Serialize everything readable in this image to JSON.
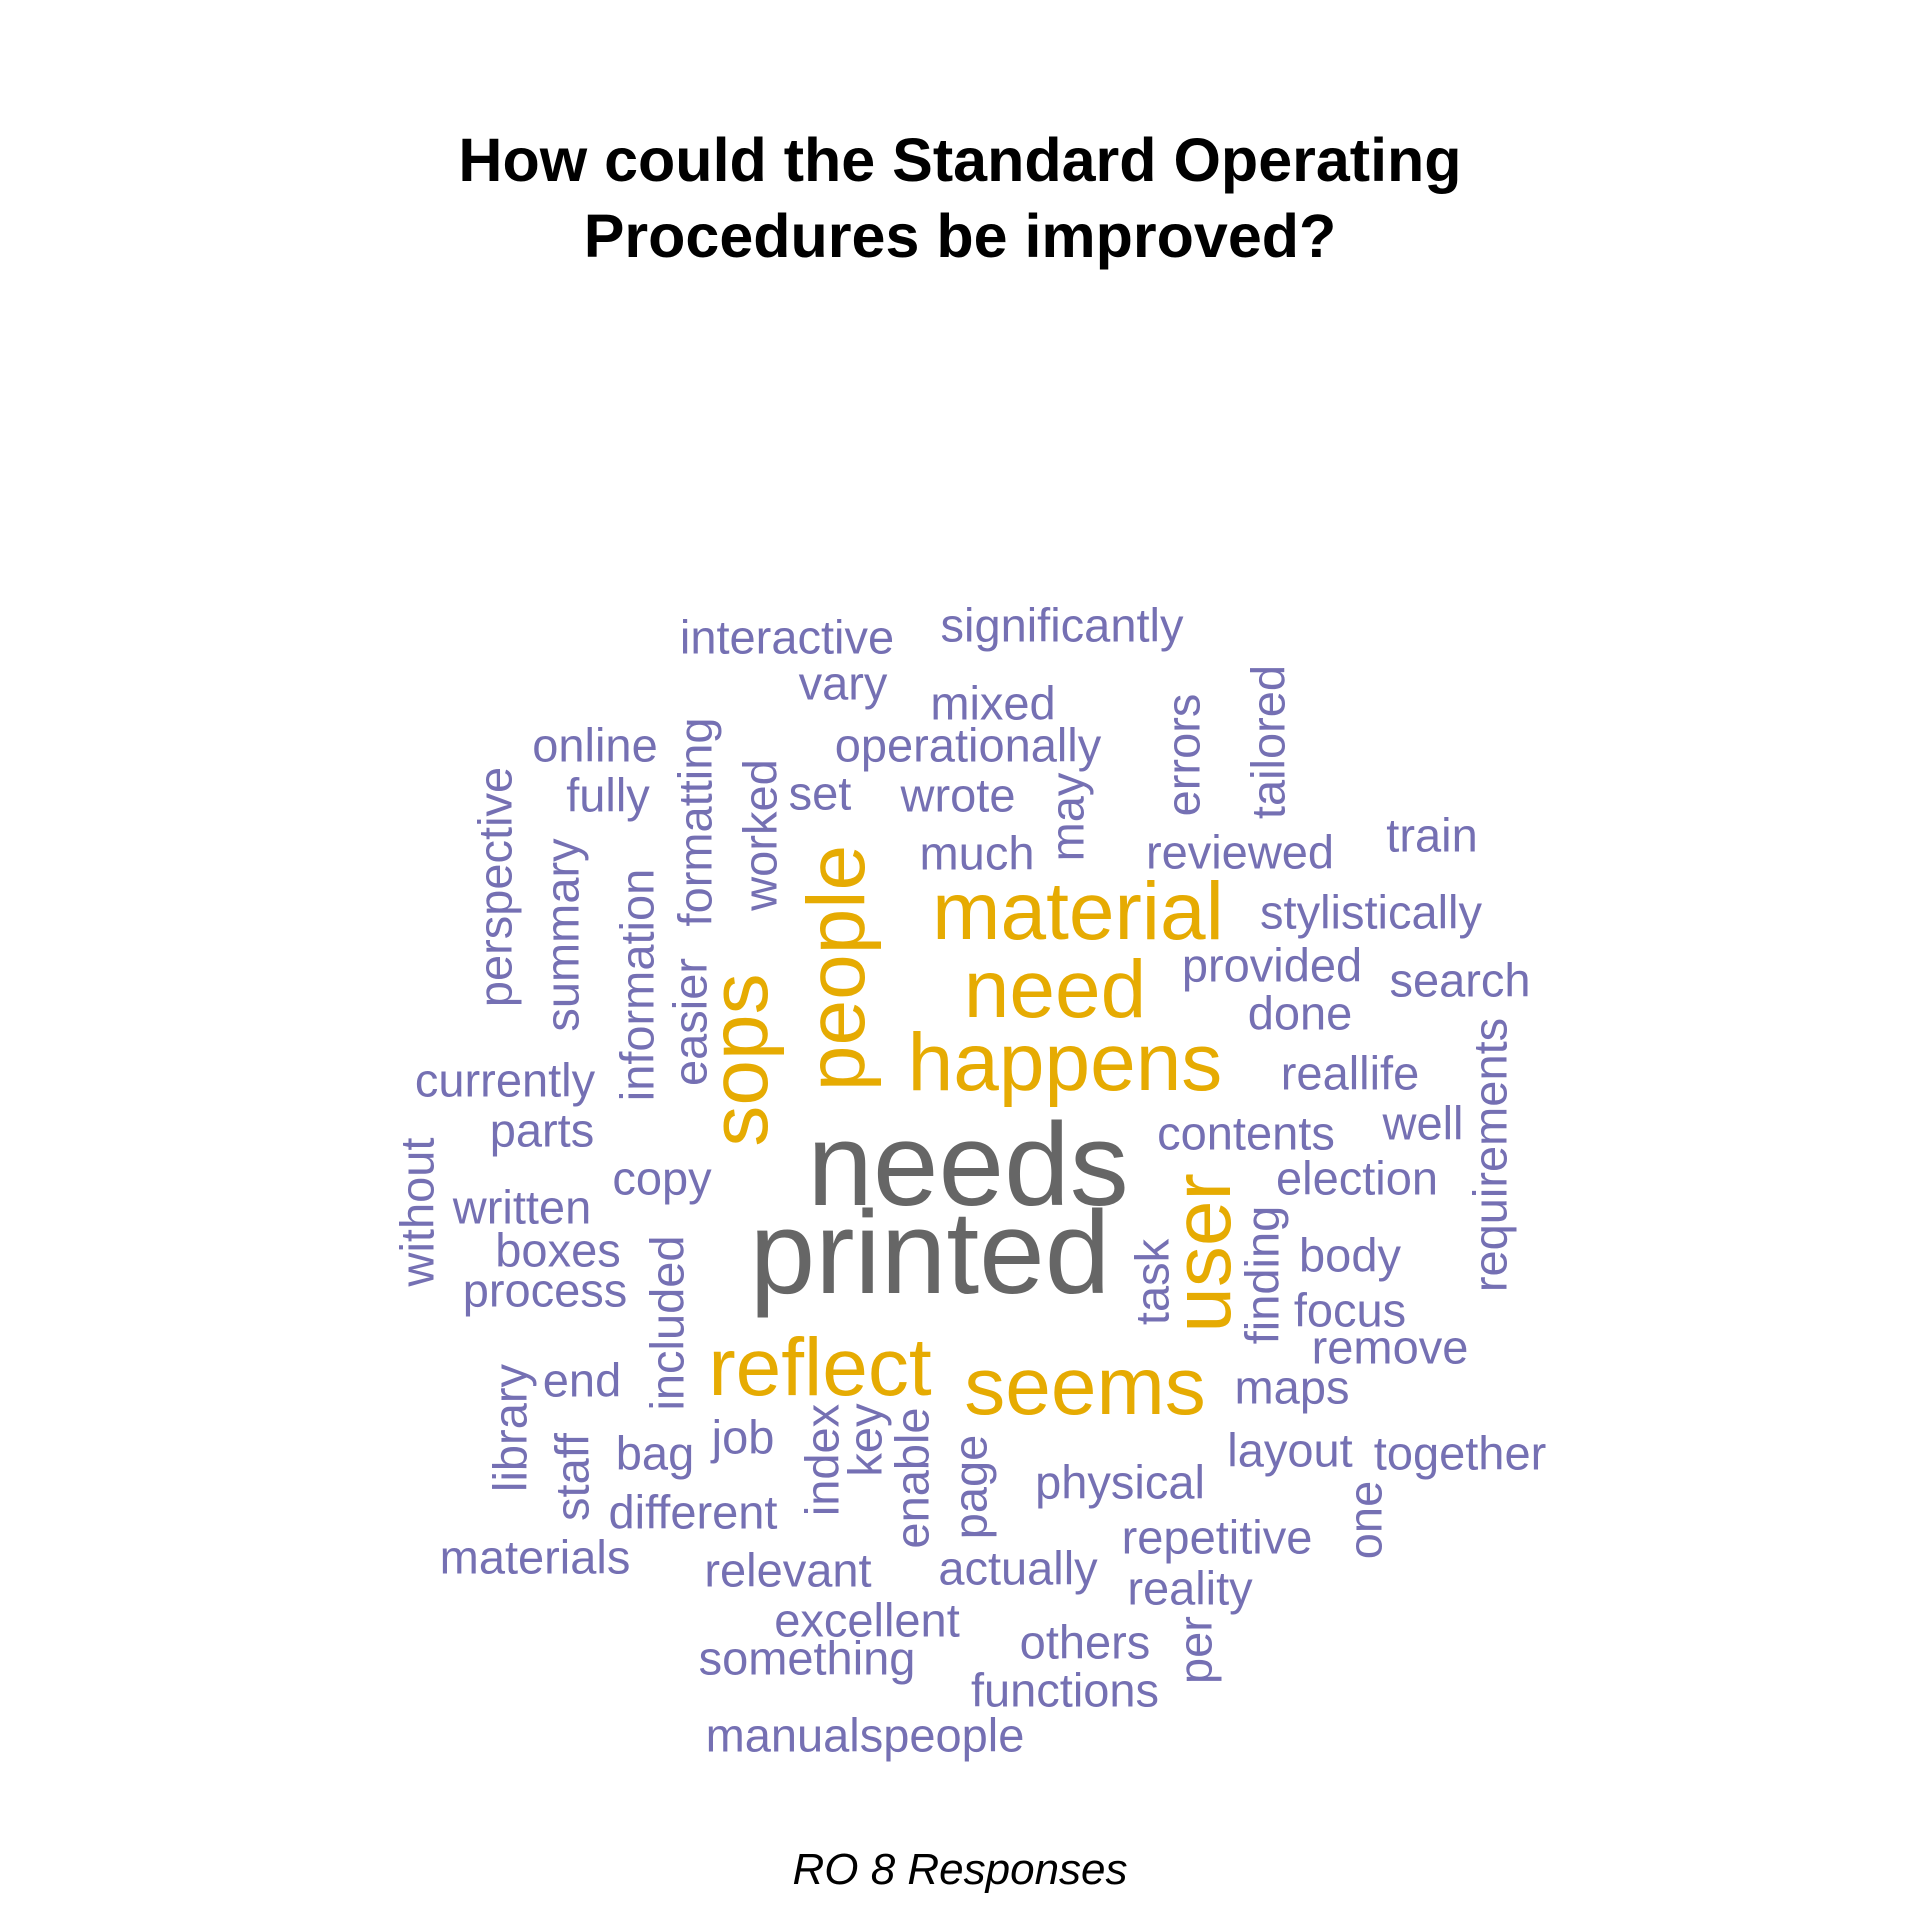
{
  "title_lines": [
    "How could the Standard Operating",
    "Procedures be improved?"
  ],
  "caption": "RO 8 Responses",
  "colors": {
    "low": "#7570b3",
    "mid": "#e6ab02",
    "high": "#666666"
  },
  "words": [
    {
      "text": "needs",
      "tier": "high"
    },
    {
      "text": "printed",
      "tier": "high"
    },
    {
      "text": "material",
      "tier": "mid"
    },
    {
      "text": "need",
      "tier": "mid"
    },
    {
      "text": "happens",
      "tier": "mid"
    },
    {
      "text": "people",
      "tier": "mid"
    },
    {
      "text": "sops",
      "tier": "mid"
    },
    {
      "text": "user",
      "tier": "mid"
    },
    {
      "text": "reflect",
      "tier": "mid"
    },
    {
      "text": "seems",
      "tier": "mid"
    },
    {
      "text": "interactive",
      "tier": "low"
    },
    {
      "text": "significantly",
      "tier": "low"
    },
    {
      "text": "vary",
      "tier": "low"
    },
    {
      "text": "mixed",
      "tier": "low"
    },
    {
      "text": "online",
      "tier": "low"
    },
    {
      "text": "operationally",
      "tier": "low"
    },
    {
      "text": "fully",
      "tier": "low"
    },
    {
      "text": "set",
      "tier": "low"
    },
    {
      "text": "wrote",
      "tier": "low"
    },
    {
      "text": "train",
      "tier": "low"
    },
    {
      "text": "much",
      "tier": "low"
    },
    {
      "text": "reviewed",
      "tier": "low"
    },
    {
      "text": "stylistically",
      "tier": "low"
    },
    {
      "text": "provided",
      "tier": "low"
    },
    {
      "text": "search",
      "tier": "low"
    },
    {
      "text": "done",
      "tier": "low"
    },
    {
      "text": "currently",
      "tier": "low"
    },
    {
      "text": "reallife",
      "tier": "low"
    },
    {
      "text": "parts",
      "tier": "low"
    },
    {
      "text": "contents",
      "tier": "low"
    },
    {
      "text": "well",
      "tier": "low"
    },
    {
      "text": "copy",
      "tier": "low"
    },
    {
      "text": "election",
      "tier": "low"
    },
    {
      "text": "written",
      "tier": "low"
    },
    {
      "text": "boxes",
      "tier": "low"
    },
    {
      "text": "body",
      "tier": "low"
    },
    {
      "text": "process",
      "tier": "low"
    },
    {
      "text": "focus",
      "tier": "low"
    },
    {
      "text": "remove",
      "tier": "low"
    },
    {
      "text": "end",
      "tier": "low"
    },
    {
      "text": "maps",
      "tier": "low"
    },
    {
      "text": "job",
      "tier": "low"
    },
    {
      "text": "bag",
      "tier": "low"
    },
    {
      "text": "layout",
      "tier": "low"
    },
    {
      "text": "together",
      "tier": "low"
    },
    {
      "text": "physical",
      "tier": "low"
    },
    {
      "text": "different",
      "tier": "low"
    },
    {
      "text": "repetitive",
      "tier": "low"
    },
    {
      "text": "materials",
      "tier": "low"
    },
    {
      "text": "relevant",
      "tier": "low"
    },
    {
      "text": "actually",
      "tier": "low"
    },
    {
      "text": "reality",
      "tier": "low"
    },
    {
      "text": "excellent",
      "tier": "low"
    },
    {
      "text": "others",
      "tier": "low"
    },
    {
      "text": "something",
      "tier": "low"
    },
    {
      "text": "functions",
      "tier": "low"
    },
    {
      "text": "manualspeople",
      "tier": "low"
    },
    {
      "text": "perspective",
      "tier": "low"
    },
    {
      "text": "summary",
      "tier": "low"
    },
    {
      "text": "information",
      "tier": "low"
    },
    {
      "text": "formatting",
      "tier": "low"
    },
    {
      "text": "easier",
      "tier": "low"
    },
    {
      "text": "worked",
      "tier": "low"
    },
    {
      "text": "may",
      "tier": "low"
    },
    {
      "text": "errors",
      "tier": "low"
    },
    {
      "text": "tailored",
      "tier": "low"
    },
    {
      "text": "requirements",
      "tier": "low"
    },
    {
      "text": "without",
      "tier": "low"
    },
    {
      "text": "task",
      "tier": "low"
    },
    {
      "text": "finding",
      "tier": "low"
    },
    {
      "text": "included",
      "tier": "low"
    },
    {
      "text": "library",
      "tier": "low"
    },
    {
      "text": "staff",
      "tier": "low"
    },
    {
      "text": "index",
      "tier": "low"
    },
    {
      "text": "key",
      "tier": "low"
    },
    {
      "text": "enable",
      "tier": "low"
    },
    {
      "text": "page",
      "tier": "low"
    },
    {
      "text": "one",
      "tier": "low"
    },
    {
      "text": "per",
      "tier": "low"
    }
  ]
}
